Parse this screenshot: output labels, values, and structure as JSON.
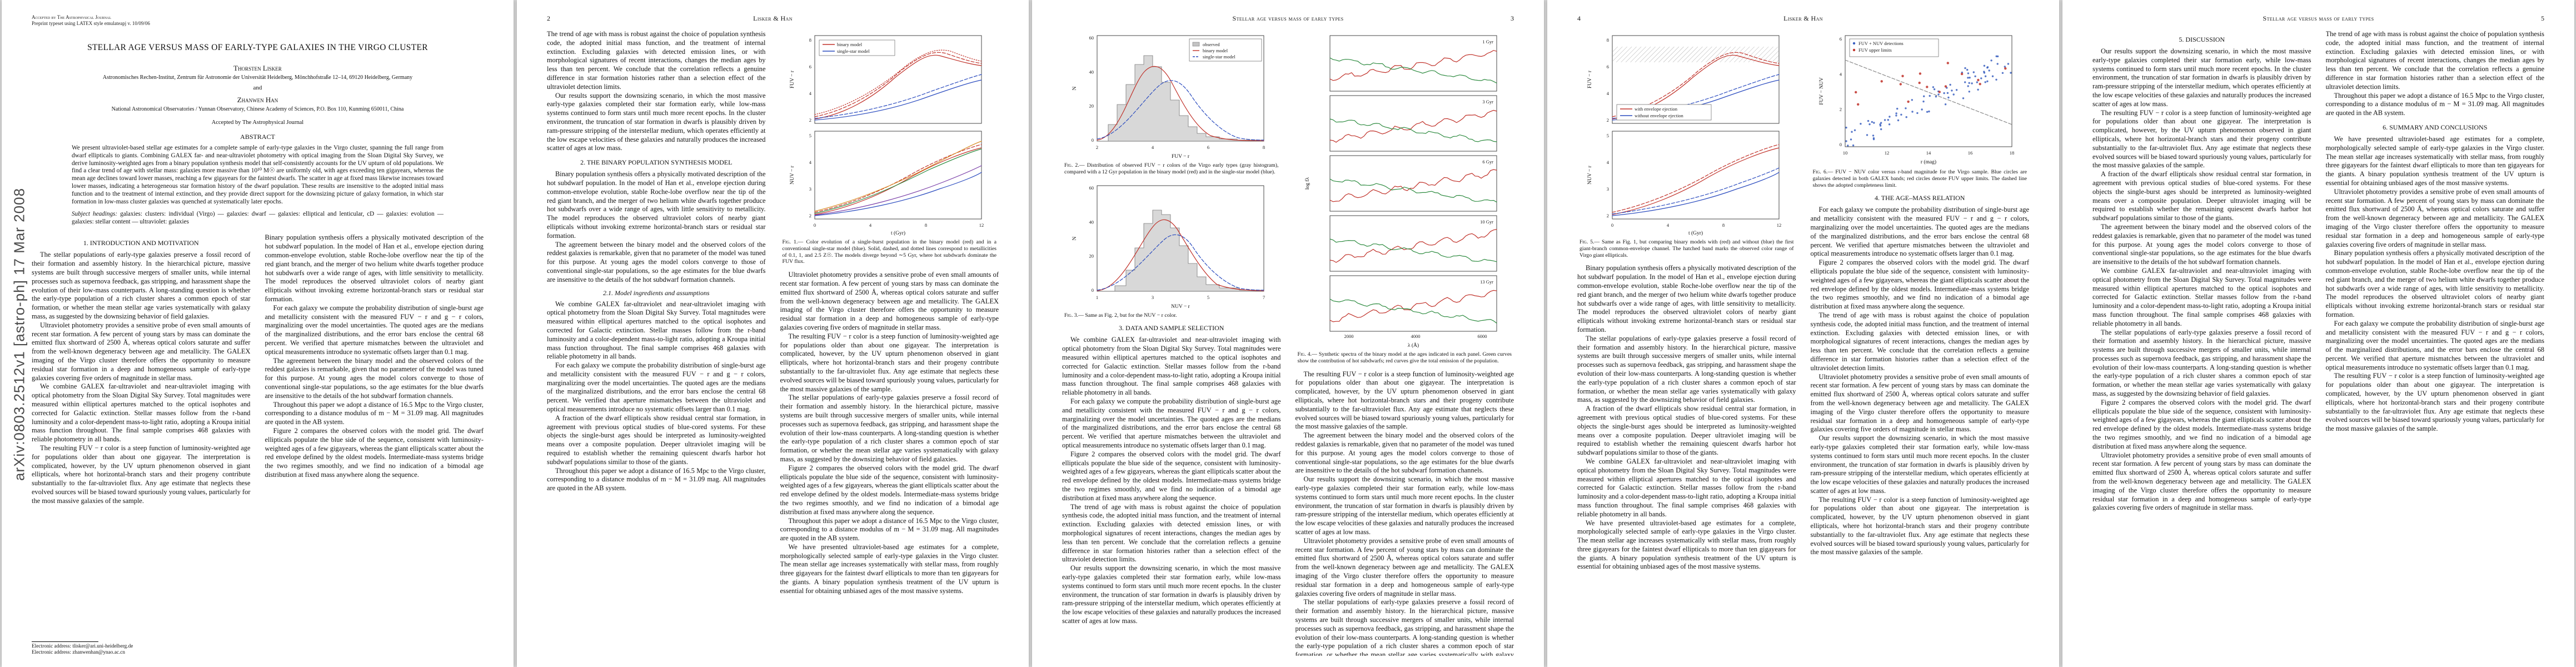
{
  "colors": {
    "red": "#c03028",
    "blue": "#2a4bbf",
    "green": "#2e8b40",
    "orange": "#d98b20",
    "purple": "#7a3fa8",
    "gray": "#c3c3c3",
    "scatterBlue": "#3a5fc0",
    "scatterRed": "#c03028"
  },
  "stamp": "arXiv:0803.2512v1  [astro-ph]  17 Mar 2008",
  "front": {
    "note1": "Accepted by The Astrophysical Journal",
    "note2": "Preprint typeset using LATEX style emulateapj v. 10/09/06",
    "title": "STELLAR AGE VERSUS MASS OF EARLY-TYPE GALAXIES IN THE VIRGO CLUSTER",
    "author1": "Thorsten Lisker",
    "affil1": "Astronomisches Rechen-Institut, Zentrum für Astronomie der Universität Heidelberg, Mönchhofstraße 12–14, 69120 Heidelberg, Germany",
    "and_word": "and",
    "author2": "Zhanwen Han",
    "affil2": "National Astronomical Observatories / Yunnan Observatory, Chinese Academy of Sciences, P.O. Box 110, Kunming 650011, China",
    "accepted": "Accepted by The Astrophysical Journal",
    "abstract_heading": "ABSTRACT",
    "abstract": "We present ultraviolet-based stellar age estimates for a complete sample of early-type galaxies in the Virgo cluster, spanning the full range from dwarf ellipticals to giants. Combining GALEX far- and near-ultraviolet photometry with optical imaging from the Sloan Digital Sky Survey, we derive luminosity-weighted ages from a binary population synthesis model that self-consistently accounts for the UV upturn of old populations. We find a clear trend of age with stellar mass: galaxies more massive than 10¹⁰ M☉ are uniformly old, with ages exceeding ten gigayears, whereas the mean age declines toward lower masses, reaching a few gigayears for the faintest dwarfs. The scatter in age at fixed mass likewise increases toward lower masses, indicating a heterogeneous star formation history of the dwarf population. These results are insensitive to the adopted initial mass function and to the treatment of internal extinction, and they provide direct support for the downsizing picture of galaxy formation, in which star formation in low-mass cluster galaxies was quenched at systematically later epochs.",
    "subject_lead": "Subject headings:",
    "subject_body": "galaxies: clusters: individual (Virgo) — galaxies: dwarf — galaxies: elliptical and lenticular, cD — galaxies: evolution — galaxies: stellar content — ultraviolet: galaxies",
    "fn1": "Electronic address: tlisker@ari.uni-heidelberg.de",
    "fn2": "Electronic address: zhanwenhan@ynao.ac.cn"
  },
  "heads": {
    "even": "Lisker & Han",
    "odd": "Stellar age versus mass of early types",
    "n2": "2",
    "n3": "3",
    "n4": "4",
    "n5": "5"
  },
  "sections": {
    "s1": "1. INTRODUCTION AND MOTIVATION",
    "s2": "2. THE BINARY POPULATION SYNTHESIS MODEL",
    "s21": "2.1. Model ingredients and assumptions",
    "s3": "3. DATA AND SAMPLE SELECTION",
    "s4": "4. THE AGE–MASS RELATION",
    "s5": "5. DISCUSSION",
    "s6": "6. SUMMARY AND CONCLUSIONS"
  },
  "paras": [
    "The stellar populations of early-type galaxies preserve a fossil record of their formation and assembly history. In the hierarchical picture, massive systems are built through successive mergers of smaller units, while internal processes such as supernova feedback, gas stripping, and harassment shape the evolution of their low-mass counterparts. A long-standing question is whether the early-type population of a rich cluster shares a common epoch of star formation, or whether the mean stellar age varies systematically with galaxy mass, as suggested by the downsizing behavior of field galaxies.",
    "Ultraviolet photometry provides a sensitive probe of even small amounts of recent star formation. A few percent of young stars by mass can dominate the emitted flux shortward of 2500 Å, whereas optical colors saturate and suffer from the well-known degeneracy between age and metallicity. The GALEX imaging of the Virgo cluster therefore offers the opportunity to measure residual star formation in a deep and homogeneous sample of early-type galaxies covering five orders of magnitude in stellar mass.",
    "We combine GALEX far-ultraviolet and near-ultraviolet imaging with optical photometry from the Sloan Digital Sky Survey. Total magnitudes were measured within elliptical apertures matched to the optical isophotes and corrected for Galactic extinction. Stellar masses follow from the r-band luminosity and a color-dependent mass-to-light ratio, adopting a Kroupa initial mass function throughout. The final sample comprises 468 galaxies with reliable photometry in all bands.",
    "The resulting FUV − r color is a steep function of luminosity-weighted age for populations older than about one gigayear. The interpretation is complicated, however, by the UV upturn phenomenon observed in giant ellipticals, where hot horizontal-branch stars and their progeny contribute substantially to the far-ultraviolet flux. Any age estimate that neglects these evolved sources will be biased toward spuriously young values, particularly for the most massive galaxies of the sample.",
    "Binary population synthesis offers a physically motivated description of the hot subdwarf population. In the model of Han et al., envelope ejection during common-envelope evolution, stable Roche-lobe overflow near the tip of the red giant branch, and the merger of two helium white dwarfs together produce hot subdwarfs over a wide range of ages, with little sensitivity to metallicity. The model reproduces the observed ultraviolet colors of nearby giant ellipticals without invoking extreme horizontal-branch stars or residual star formation.",
    "For each galaxy we compute the probability distribution of single-burst age and metallicity consistent with the measured FUV − r and g − r colors, marginalizing over the model uncertainties. The quoted ages are the medians of the marginalized distributions, and the error bars enclose the central 68 percent. We verified that aperture mismatches between the ultraviolet and optical measurements introduce no systematic offsets larger than 0.1 mag.",
    "Figure 2 compares the observed colors with the model grid. The dwarf ellipticals populate the blue side of the sequence, consistent with luminosity-weighted ages of a few gigayears, whereas the giant ellipticals scatter about the red envelope defined by the oldest models. Intermediate-mass systems bridge the two regimes smoothly, and we find no indication of a bimodal age distribution at fixed mass anywhere along the sequence.",
    "The trend of age with mass is robust against the choice of population synthesis code, the adopted initial mass function, and the treatment of internal extinction. Excluding galaxies with detected emission lines, or with morphological signatures of recent interactions, changes the median ages by less than ten percent. We conclude that the correlation reflects a genuine difference in star formation histories rather than a selection effect of the ultraviolet detection limits.",
    "Our results support the downsizing scenario, in which the most massive early-type galaxies completed their star formation early, while low-mass systems continued to form stars until much more recent epochs. In the cluster environment, the truncation of star formation in dwarfs is plausibly driven by ram-pressure stripping of the interstellar medium, which operates efficiently at the low escape velocities of these galaxies and naturally produces the increased scatter of ages at low mass.",
    "A fraction of the dwarf ellipticals show residual central star formation, in agreement with previous optical studies of blue-cored systems. For these objects the single-burst ages should be interpreted as luminosity-weighted means over a composite population. Deeper ultraviolet imaging will be required to establish whether the remaining quiescent dwarfs harbor hot subdwarf populations similar to those of the giants.",
    "Throughout this paper we adopt a distance of 16.5 Mpc to the Virgo cluster, corresponding to a distance modulus of m − M = 31.09 mag. All magnitudes are quoted in the AB system.",
    "The agreement between the binary model and the observed colors of the reddest galaxies is remarkable, given that no parameter of the model was tuned for this purpose. At young ages the model colors converge to those of conventional single-star populations, so the age estimates for the blue dwarfs are insensitive to the details of the hot subdwarf formation channels.",
    "We have presented ultraviolet-based age estimates for a complete, morphologically selected sample of early-type galaxies in the Virgo cluster. The mean stellar age increases systematically with stellar mass, from roughly three gigayears for the faintest dwarf ellipticals to more than ten gigayears for the giants. A binary population synthesis treatment of the UV upturn is essential for obtaining unbiased ages of the most massive systems."
  ],
  "figures": {
    "f1": {
      "lead": "Fig. 1.—",
      "caption": "Color evolution of a single-burst population in the binary model (red) and in a conventional single-star model (blue). Solid, dashed, and dotted lines correspond to metallicities of 0.1, 1, and 2.5 Z☉. The models diverge beyond ∼5 Gyr, where hot subdwarfs dominate the FUV flux.",
      "leg1": "binary model",
      "leg2": "single-star model",
      "ylab1": "FUV − r",
      "ylab2": "NUV − r",
      "xlab": "t (Gyr)",
      "xt": [
        "0",
        "4",
        "8",
        "12"
      ],
      "yt1": [
        "2",
        "4",
        "6",
        "8"
      ],
      "yt2": [
        "2",
        "3",
        "4",
        "5"
      ]
    },
    "f2": {
      "lead": "Fig. 2.—",
      "caption": "Distribution of observed FUV − r colors of the Virgo early types (gray histogram), compared with a 12 Gyr population in the binary model (red) and in the single-star model (blue).",
      "legObs": "observed",
      "legBin": "binary model",
      "legSin": "single-star model",
      "xlab": "FUV − r",
      "ylab": "N",
      "xt": [
        "2",
        "4",
        "6",
        "8"
      ],
      "yt": [
        "0",
        "20",
        "40",
        "60"
      ]
    },
    "f3": {
      "lead": "Fig. 3.—",
      "caption": "Same as Fig. 2, but for the NUV − r color.",
      "xlab": "NUV − r",
      "ylab": "N",
      "xt": [
        "1",
        "3",
        "5",
        "7"
      ],
      "yt": [
        "0",
        "20",
        "40",
        "60"
      ]
    },
    "f4": {
      "lead": "Fig. 4.—",
      "caption": "Synthetic spectra of the binary model at the ages indicated in each panel. Green curves show the contribution of hot subdwarfs; red curves give the total emission of the population.",
      "panels": [
        "1 Gyr",
        "3 Gyr",
        "6 Gyr",
        "10 Gyr",
        "13 Gyr"
      ],
      "xlab": "λ (Å)",
      "ylab": "log fλ",
      "xt": [
        "2000",
        "4000",
        "6000"
      ]
    },
    "f5": {
      "lead": "Fig. 5.—",
      "caption": "Same as Fig. 1, but comparing binary models with (red) and without (blue) the first giant-branch common-envelope channel. The hatched band marks the observed color range of Virgo giant ellipticals.",
      "leg1": "with envelope ejection",
      "leg2": "without envelope ejection",
      "ylab1": "FUV − r",
      "ylab2": "NUV − r",
      "xlab": "t (Gyr)",
      "xt": [
        "0",
        "4",
        "8",
        "12"
      ],
      "yt1": [
        "2",
        "4",
        "6",
        "8"
      ],
      "yt2": [
        "2",
        "3",
        "4",
        "5"
      ]
    },
    "f6": {
      "lead": "Fig. 6.—",
      "caption": "FUV − NUV color versus r-band magnitude for the Virgo sample. Blue circles are galaxies detected in both GALEX bands; red circles denote FUV upper limits. The dashed line shows the adopted completeness limit.",
      "leg1": "FUV + NUV detections",
      "leg2": "FUV upper limits",
      "xlab": "r (mag)",
      "ylab": "FUV − NUV",
      "xt": [
        "10",
        "12",
        "14",
        "16",
        "18"
      ],
      "yt": [
        "0",
        "2",
        "4",
        "6"
      ]
    }
  }
}
